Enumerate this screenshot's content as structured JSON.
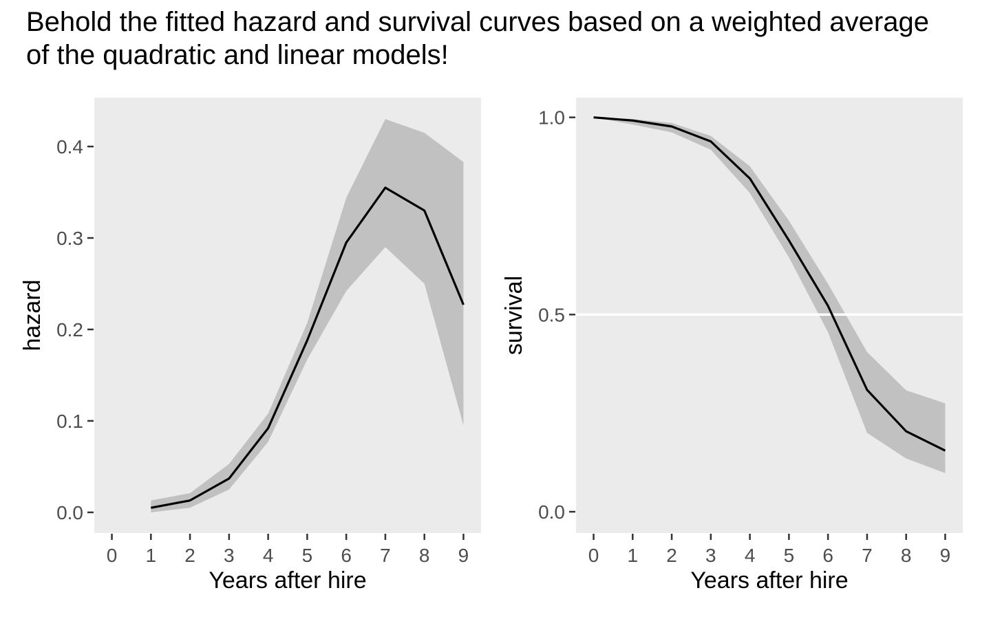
{
  "title": "Behold the fitted hazard and survival curves based on a weighted average of the quadratic and linear models!",
  "colors": {
    "page_bg": "#FFFFFF",
    "panel_bg": "#EBEBEB",
    "ribbon": "#C1C1C1",
    "line": "#000000",
    "tick": "#333333",
    "tick_label": "#4D4D4D",
    "axis_title": "#000000",
    "reference_line": "#FFFFFF"
  },
  "chart_data": [
    {
      "name": "hazard",
      "type": "line",
      "title": "",
      "xlabel": "Years after hire",
      "ylabel": "hazard",
      "x": [
        1,
        2,
        3,
        4,
        5,
        6,
        7,
        8,
        9
      ],
      "series": [
        {
          "name": "fitted hazard (weighted average of quadratic and linear models)",
          "values": [
            0.005,
            0.013,
            0.037,
            0.092,
            0.188,
            0.295,
            0.355,
            0.33,
            0.227
          ]
        }
      ],
      "ribbon": {
        "lower": [
          0.0,
          0.005,
          0.025,
          0.077,
          0.167,
          0.242,
          0.29,
          0.25,
          0.095
        ],
        "upper": [
          0.013,
          0.021,
          0.053,
          0.108,
          0.207,
          0.344,
          0.43,
          0.415,
          0.383
        ]
      },
      "xticks": [
        0,
        1,
        2,
        3,
        4,
        5,
        6,
        7,
        8,
        9
      ],
      "yticks": [
        0.0,
        0.1,
        0.2,
        0.3,
        0.4
      ],
      "ytick_labels": [
        "0.0",
        "0.1",
        "0.2",
        "0.3",
        "0.4"
      ],
      "xlim": [
        -0.45,
        9.45
      ],
      "ylim": [
        -0.0226,
        0.4534
      ],
      "grid": false,
      "legend": "none",
      "reference_line_y": null
    },
    {
      "name": "survival",
      "type": "line",
      "title": "",
      "xlabel": "Years after hire",
      "ylabel": "survival",
      "x": [
        0,
        1,
        2,
        3,
        4,
        5,
        6,
        7,
        8,
        9
      ],
      "series": [
        {
          "name": "fitted survival (weighted average of quadratic and linear models)",
          "values": [
            1.0,
            0.992,
            0.977,
            0.939,
            0.845,
            0.688,
            0.522,
            0.309,
            0.204,
            0.155
          ]
        }
      ],
      "ribbon": {
        "lower": [
          1.0,
          0.982,
          0.962,
          0.918,
          0.808,
          0.645,
          0.455,
          0.2,
          0.135,
          0.098
        ],
        "upper": [
          1.0,
          0.996,
          0.986,
          0.953,
          0.876,
          0.738,
          0.578,
          0.405,
          0.308,
          0.275
        ]
      },
      "xticks": [
        0,
        1,
        2,
        3,
        4,
        5,
        6,
        7,
        8,
        9
      ],
      "yticks": [
        0.0,
        0.5,
        1.0
      ],
      "ytick_labels": [
        "0.0",
        "0.5",
        "1.0"
      ],
      "xlim": [
        -0.45,
        9.45
      ],
      "ylim": [
        -0.054,
        1.05
      ],
      "grid": false,
      "legend": "none",
      "reference_line_y": 0.5
    }
  ]
}
